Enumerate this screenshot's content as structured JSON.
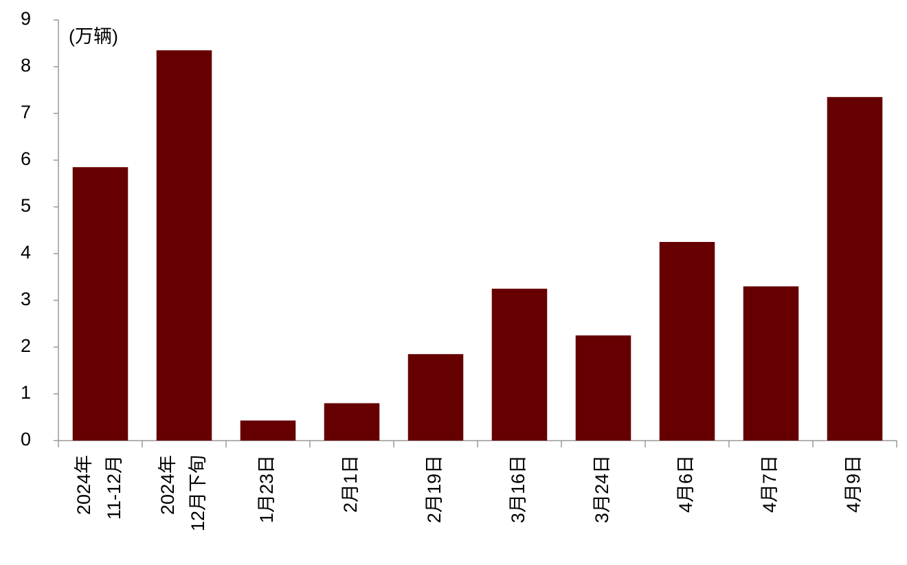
{
  "chart_data": {
    "type": "bar",
    "unit_label": "(万辆)",
    "categories": [
      [
        "2024年",
        "11-12月"
      ],
      [
        "2024年",
        "12月下旬"
      ],
      "1月23日",
      "2月1日",
      "2月19日",
      "3月16日",
      "3月24日",
      "4月6日",
      "4月7日",
      "4月9日"
    ],
    "values": [
      5.85,
      8.35,
      0.43,
      0.8,
      1.85,
      3.25,
      2.25,
      4.25,
      3.3,
      7.35
    ],
    "color": "#660000",
    "ylim": [
      0,
      9
    ],
    "yticks": [
      0,
      1,
      2,
      3,
      4,
      5,
      6,
      7,
      8,
      9
    ],
    "grid": false
  }
}
